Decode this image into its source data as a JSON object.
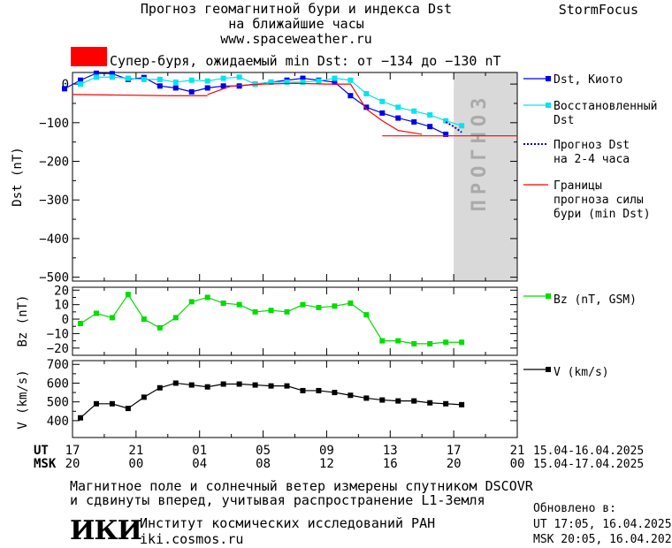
{
  "header": {
    "title_line1": "Прогноз геомагнитной бури и индекса Dst",
    "title_line2": "на ближайшие часы",
    "website": "www.spaceweather.ru",
    "brand": "StormFocus",
    "storm_text": "Супер-буря, ожидаемый min Dst: от −134 до −130 nT",
    "storm_color": "#ff0000"
  },
  "forecast_label": "ПРОГНОЗ",
  "legend": {
    "dst_kyoto": "Dst, Киото",
    "reconstructed_1": "Восстановленный",
    "reconstructed_2": "Dst",
    "forecast_1": "Прогноз Dst",
    "forecast_2": "на 2-4 часа",
    "bounds_1": "Границы",
    "bounds_2": "прогноза силы",
    "bounds_3": "бури (min Dst)",
    "bz": "Bz (nT, GSM)",
    "v": "V (km/s)"
  },
  "axis_labels": {
    "dst": "Dst (nT)",
    "bz": "Bz (nT)",
    "v": "V (km/s)",
    "ut": "UT",
    "msk": "MSK",
    "ut_range": "15.04-16.04.2025",
    "msk_range": "15.04-17.04.2025"
  },
  "footer": {
    "note_1": "Магнитное поле и солнечный ветер измерены спутником DSCOVR",
    "note_2": "и сдвинуты вперед, учитывая распространение L1-Земля",
    "logo": "ИКИ",
    "institute": "Институт космических исследований РАН",
    "institute_url": "iki.cosmos.ru",
    "updated_label": "Обновлено в:",
    "updated_ut": "UT  17:05, 16.04.2025",
    "updated_msk": "MSK 20:05, 16.04.2025"
  },
  "chart_data": {
    "type": "line",
    "x_unit": "hours since 17:00 UT 15.04.2025",
    "x_range": [
      0,
      28
    ],
    "x_ticks": [
      0,
      4,
      8,
      12,
      16,
      20,
      24,
      28
    ],
    "ut_tick_labels": [
      "17",
      "21",
      "01",
      "05",
      "09",
      "13",
      "17",
      "21"
    ],
    "msk_tick_labels": [
      "20",
      "00",
      "04",
      "08",
      "12",
      "16",
      "20",
      "00"
    ],
    "forecast_region": [
      24,
      28
    ],
    "panels": [
      {
        "name": "dst",
        "ylim": [
          -510,
          30
        ],
        "yticks": [
          0,
          -100,
          -200,
          -300,
          -400,
          -500
        ],
        "series": [
          {
            "name": "Dst, Киото",
            "color": "#0000ee",
            "marker": "square",
            "style": "solid",
            "x": [
              -0.5,
              0.5,
              1.5,
              2.5,
              3.5,
              4.5,
              5.5,
              6.5,
              7.5,
              8.5,
              9.5,
              10.5,
              11.5,
              12.5,
              13.5,
              14.5,
              15.5,
              16.5,
              17.5,
              18.5,
              19.5,
              20.5,
              21.5,
              22.5,
              23.5
            ],
            "y": [
              -12,
              10,
              28,
              27,
              12,
              17,
              -5,
              -10,
              -20,
              -10,
              -5,
              -5,
              0,
              5,
              10,
              15,
              10,
              5,
              -30,
              -60,
              -75,
              -88,
              -98,
              -110,
              -130
            ]
          },
          {
            "name": "Восстановленный Dst",
            "color": "#00e5ee",
            "marker": "square",
            "style": "solid",
            "x": [
              0.5,
              1.5,
              2.5,
              3.5,
              4.5,
              5.5,
              6.5,
              7.5,
              8.5,
              9.5,
              10.5,
              11.5,
              12.5,
              13.5,
              14.5,
              15.5,
              16.5,
              17.5,
              18.5,
              19.5,
              20.5,
              21.5,
              22.5,
              23.5,
              24.5
            ],
            "y": [
              0,
              18,
              18,
              15,
              12,
              12,
              5,
              10,
              8,
              15,
              18,
              0,
              5,
              5,
              5,
              8,
              15,
              10,
              -25,
              -45,
              -60,
              -70,
              -80,
              -95,
              -108
            ]
          },
          {
            "name": "Прогноз Dst на 2-4 часа",
            "color": "#0000cc",
            "marker": "none",
            "style": "dotted",
            "x": [
              23.5,
              24.0,
              24.5
            ],
            "y": [
              -98,
              -110,
              -125
            ]
          },
          {
            "name": "Границы прогноза силы бури (min Dst)",
            "color": "#ff0000",
            "marker": "none",
            "style": "solid",
            "segments": [
              {
                "x": [
                  0,
                  6
                ],
                "y": [
                  -27,
                  -30
                ]
              },
              {
                "x": [
                  6,
                  8.5
                ],
                "y": [
                  -30,
                  -30
                ]
              },
              {
                "x": [
                  8.5,
                  10,
                  12,
                  14,
                  16,
                  17.5,
                  18.5,
                  19.5,
                  20.5,
                  22
                ],
                "y": [
                  -27,
                  -5,
                  0,
                  2,
                  0,
                  0,
                  -65,
                  -95,
                  -120,
                  -130
                ]
              },
              {
                "x": [
                  19.5,
                  28
                ],
                "y": [
                  -134,
                  -134
                ]
              }
            ]
          }
        ]
      },
      {
        "name": "bz",
        "ylim": [
          -25,
          22
        ],
        "yticks": [
          20,
          10,
          0,
          -10,
          -20
        ],
        "series": [
          {
            "name": "Bz (nT, GSM)",
            "color": "#00dd00",
            "marker": "square",
            "style": "solid",
            "x": [
              0.5,
              1.5,
              2.5,
              3.5,
              4.5,
              5.5,
              6.5,
              7.5,
              8.5,
              9.5,
              10.5,
              11.5,
              12.5,
              13.5,
              14.5,
              15.5,
              16.5,
              17.5,
              18.5,
              19.5,
              20.5,
              21.5,
              22.5,
              23.5,
              24.5
            ],
            "y": [
              -3,
              4,
              1,
              17,
              0,
              -6,
              1,
              12,
              15,
              11,
              10,
              5,
              6,
              5,
              10,
              8,
              9,
              11,
              3,
              -15,
              -15,
              -17,
              -17,
              -16,
              -16
            ]
          }
        ]
      },
      {
        "name": "v",
        "ylim": [
          310,
          720
        ],
        "yticks": [
          700,
          600,
          500,
          400
        ],
        "series": [
          {
            "name": "V (km/s)",
            "color": "#000000",
            "marker": "square",
            "style": "solid",
            "x": [
              0.5,
              1.5,
              2.5,
              3.5,
              4.5,
              5.5,
              6.5,
              7.5,
              8.5,
              9.5,
              10.5,
              11.5,
              12.5,
              13.5,
              14.5,
              15.5,
              16.5,
              17.5,
              18.5,
              19.5,
              20.5,
              21.5,
              22.5,
              23.5,
              24.5
            ],
            "y": [
              415,
              490,
              490,
              465,
              525,
              575,
              600,
              590,
              580,
              595,
              595,
              590,
              585,
              585,
              560,
              560,
              550,
              535,
              520,
              510,
              505,
              505,
              495,
              490,
              485
            ]
          }
        ]
      }
    ]
  }
}
